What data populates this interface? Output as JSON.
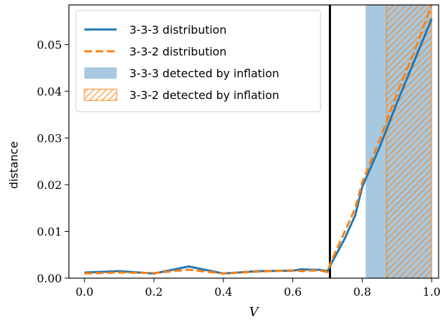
{
  "colors": {
    "blue": "#1f77b4",
    "orange": "#ff7f0e",
    "blue_span": "#a6c8e0",
    "frame": "#000000"
  },
  "chart_data": {
    "type": "line",
    "xlabel": "V",
    "ylabel": "distance",
    "xlim": [
      -0.045,
      1.02
    ],
    "ylim": [
      0.0,
      0.0585
    ],
    "xticks": [
      0.0,
      0.2,
      0.4,
      0.6,
      0.8,
      1.0
    ],
    "xtick_labels": [
      "0.0",
      "0.2",
      "0.4",
      "0.6",
      "0.8",
      "1.0"
    ],
    "yticks": [
      0.0,
      0.01,
      0.02,
      0.03,
      0.04,
      0.05
    ],
    "ytick_labels": [
      "0.00",
      "0.01",
      "0.02",
      "0.03",
      "0.04",
      "0.05"
    ],
    "grid": false,
    "legend_position": "top-left",
    "vertical_line_x": 0.707,
    "series": [
      {
        "name": "3-3-3 distribution",
        "style": "solid",
        "color": "#1f77b4",
        "x": [
          0.0,
          0.1,
          0.2,
          0.3,
          0.4,
          0.5,
          0.6,
          0.625,
          0.65,
          0.675,
          0.7,
          0.71,
          0.75,
          0.78,
          0.8,
          0.85,
          0.9,
          0.95,
          1.0
        ],
        "y": [
          0.0012,
          0.0015,
          0.001,
          0.0025,
          0.001,
          0.0015,
          0.0016,
          0.0019,
          0.0018,
          0.0018,
          0.0015,
          0.003,
          0.0085,
          0.0135,
          0.0195,
          0.028,
          0.0375,
          0.0465,
          0.0555
        ]
      },
      {
        "name": "3-3-2 distribution",
        "style": "dashed",
        "color": "#ff7f0e",
        "x": [
          0.0,
          0.1,
          0.2,
          0.3,
          0.4,
          0.5,
          0.6,
          0.625,
          0.65,
          0.675,
          0.7,
          0.71,
          0.75,
          0.78,
          0.8,
          0.85,
          0.9,
          0.95,
          1.0
        ],
        "y": [
          0.001,
          0.0012,
          0.0011,
          0.0018,
          0.001,
          0.0014,
          0.0017,
          0.0015,
          0.0016,
          0.0017,
          0.0013,
          0.0035,
          0.01,
          0.015,
          0.0205,
          0.0295,
          0.0395,
          0.0485,
          0.0585
        ]
      }
    ],
    "spans": [
      {
        "name": "3-3-3 detected by inflation",
        "x_start": 0.81,
        "x_end": 1.0,
        "fill": "solid",
        "color": "#a6c8e0"
      },
      {
        "name": "3-3-2 detected by inflation",
        "x_start": 0.87,
        "x_end": 1.0,
        "fill": "hatch",
        "color": "#ff7f0e"
      }
    ],
    "legend": [
      {
        "label": "3-3-3 distribution",
        "kind": "line-solid",
        "color": "#1f77b4"
      },
      {
        "label": "3-3-2 distribution",
        "kind": "line-dashed",
        "color": "#ff7f0e"
      },
      {
        "label": "3-3-3 detected by inflation",
        "kind": "patch-solid",
        "color": "#a6c8e0"
      },
      {
        "label": "3-3-2 detected by inflation",
        "kind": "patch-hatch",
        "color": "#ff7f0e"
      }
    ]
  }
}
